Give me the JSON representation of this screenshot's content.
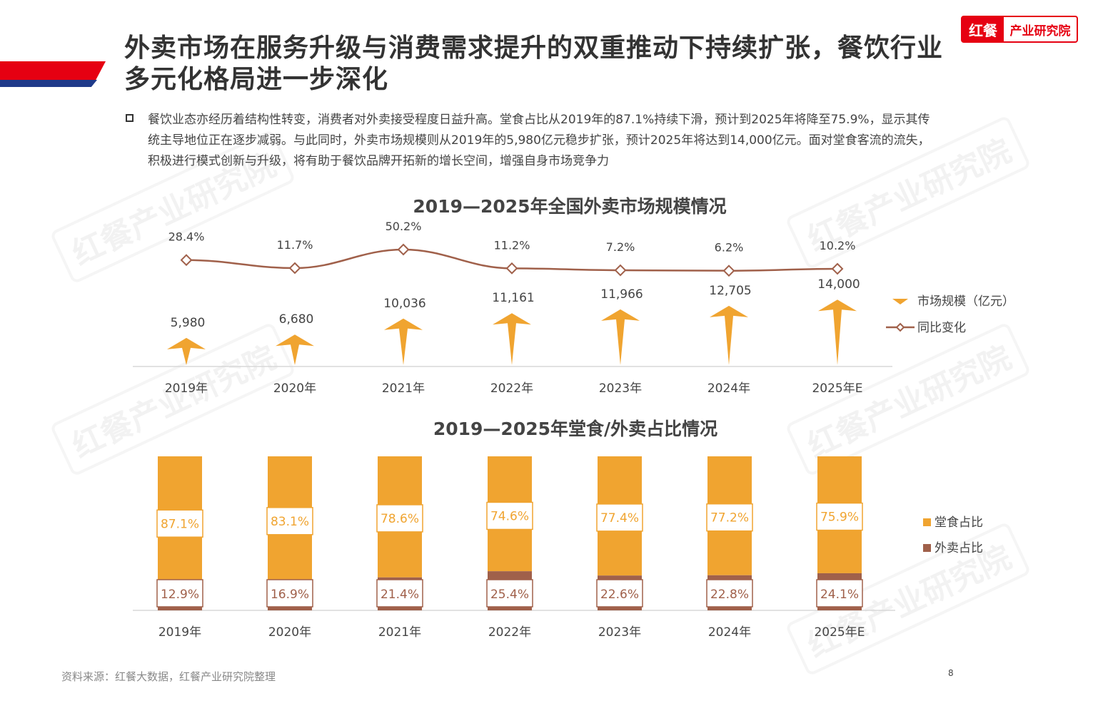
{
  "header": {
    "title": "外卖市场在服务升级与消费需求提升的双重推动下持续扩张，餐饮行业多元化格局进一步深化",
    "logo_left": "红餐",
    "logo_right": "产业研究院"
  },
  "summary": "餐饮业态亦经历着结构性转变，消费者对外卖接受程度日益升高。堂食占比从2019年的87.1%持续下滑，预计到2025年将降至75.9%，显示其传统主导地位正在逐步减弱。与此同时，外卖市场规模则从2019年的5,980亿元稳步扩张，预计2025年将达到14,000亿元。面对堂食客流的流失，积极进行模式创新与升级，将有助于餐饮品牌开拓新的增长空间，增强自身市场竞争力",
  "watermark": "红餐产业研究院",
  "colors": {
    "orange": "#F0A430",
    "brown": "#A0604A",
    "red": "#E60012",
    "navy": "#1F3A8A"
  },
  "chart_data": [
    {
      "type": "bar",
      "title": "2019—2025年全国外卖市场规模情况",
      "categories": [
        "2019年",
        "2020年",
        "2021年",
        "2022年",
        "2023年",
        "2024年",
        "2025年E"
      ],
      "series": [
        {
          "name": "市场规模（亿元）",
          "type": "bar",
          "values": [
            5980,
            6680,
            10036,
            11161,
            11966,
            12705,
            14000
          ],
          "labels": [
            "5,980",
            "6,680",
            "10,036",
            "11,161",
            "11,966",
            "12,705",
            "14,000"
          ]
        },
        {
          "name": "同比变化",
          "type": "line",
          "values": [
            28.4,
            11.7,
            50.2,
            11.2,
            7.2,
            6.2,
            10.2
          ],
          "labels": [
            "28.4%",
            "11.7%",
            "50.2%",
            "11.2%",
            "7.2%",
            "6.2%",
            "10.2%"
          ]
        }
      ],
      "legend": "right",
      "grid": false
    },
    {
      "type": "bar",
      "stacked": true,
      "title": "2019—2025年堂食/外卖占比情况",
      "categories": [
        "2019年",
        "2020年",
        "2021年",
        "2022年",
        "2023年",
        "2024年",
        "2025年E"
      ],
      "series": [
        {
          "name": "堂食占比",
          "values": [
            87.1,
            83.1,
            78.6,
            74.6,
            77.4,
            77.2,
            75.9
          ],
          "labels": [
            "87.1%",
            "83.1%",
            "78.6%",
            "74.6%",
            "77.4%",
            "77.2%",
            "75.9%"
          ]
        },
        {
          "name": "外卖占比",
          "values": [
            12.9,
            16.9,
            21.4,
            25.4,
            22.6,
            22.8,
            24.1
          ],
          "labels": [
            "12.9%",
            "16.9%",
            "21.4%",
            "25.4%",
            "22.6%",
            "22.8%",
            "24.1%"
          ]
        }
      ],
      "legend": "right",
      "grid": false
    }
  ],
  "footer": {
    "source": "资料来源：红餐大数据，红餐产业研究院整理",
    "page": "8"
  }
}
